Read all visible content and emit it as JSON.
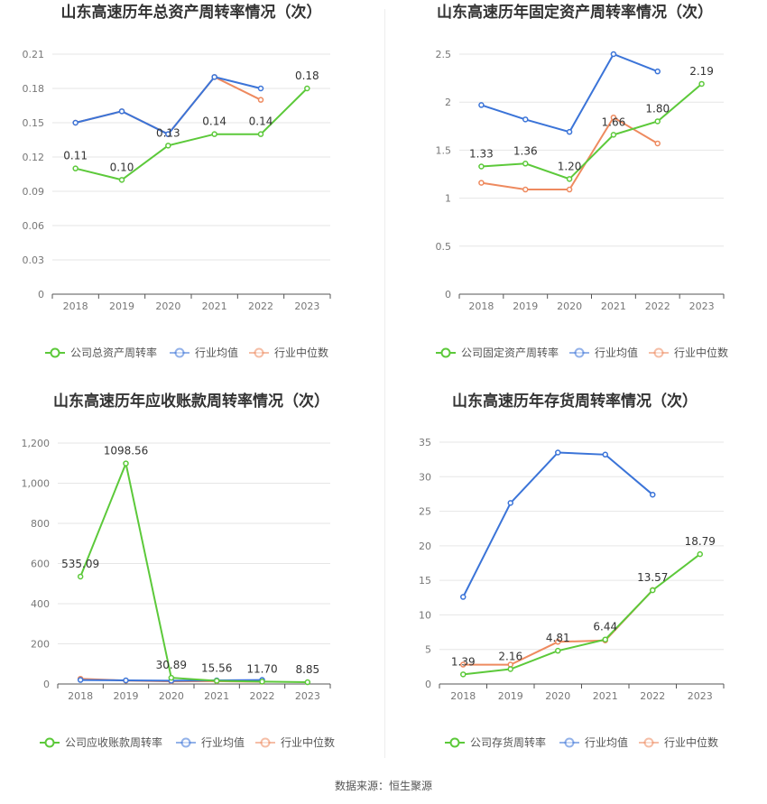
{
  "colors": {
    "company": "#5cc93a",
    "avg": "#3b74d8",
    "median": "#ee8a5f",
    "grid": "#e6e6e6",
    "axis": "#555555"
  },
  "source_text": "数据来源：恒生聚源",
  "chart_data": [
    {
      "type": "line",
      "title": "山东高速历年总资产周转率情况（次）",
      "categories": [
        "2018",
        "2019",
        "2020",
        "2021",
        "2022",
        "2023"
      ],
      "ylim": [
        0,
        0.21
      ],
      "yticks": [
        "0",
        "0.03",
        "0.06",
        "0.09",
        "0.12",
        "0.15",
        "0.18",
        "0.21"
      ],
      "ytick_values": [
        0,
        0.03,
        0.06,
        0.09,
        0.12,
        0.15,
        0.18,
        0.21
      ],
      "series": [
        {
          "name": "公司总资产周转率",
          "color_key": "company",
          "values": [
            0.11,
            0.1,
            0.13,
            0.14,
            0.14,
            0.18
          ],
          "labels": [
            "0.11",
            "0.10",
            "0.13",
            "0.14",
            "0.14",
            "0.18"
          ]
        },
        {
          "name": "行业均值",
          "color_key": "avg",
          "values": [
            0.15,
            0.16,
            0.14,
            0.19,
            0.18,
            null
          ]
        },
        {
          "name": "行业中位数",
          "color_key": "median",
          "values": [
            0.15,
            0.16,
            0.14,
            0.19,
            0.17,
            null
          ]
        }
      ]
    },
    {
      "type": "line",
      "title": "山东高速历年固定资产周转率情况（次）",
      "categories": [
        "2018",
        "2019",
        "2020",
        "2021",
        "2022",
        "2023"
      ],
      "ylim": [
        0,
        2.5
      ],
      "yticks": [
        "0",
        "0.5",
        "1",
        "1.5",
        "2",
        "2.5"
      ],
      "ytick_values": [
        0,
        0.5,
        1,
        1.5,
        2,
        2.5
      ],
      "series": [
        {
          "name": "公司固定资产周转率",
          "color_key": "company",
          "values": [
            1.33,
            1.36,
            1.2,
            1.66,
            1.8,
            2.19
          ],
          "labels": [
            "1.33",
            "1.36",
            "1.20",
            "1.66",
            "1.80",
            "2.19"
          ]
        },
        {
          "name": "行业均值",
          "color_key": "avg",
          "values": [
            1.97,
            1.82,
            1.69,
            2.5,
            2.32,
            null
          ]
        },
        {
          "name": "行业中位数",
          "color_key": "median",
          "values": [
            1.16,
            1.09,
            1.09,
            1.84,
            1.57,
            null
          ]
        }
      ]
    },
    {
      "type": "line",
      "title": "山东高速历年应收账款周转率情况（次）",
      "categories": [
        "2018",
        "2019",
        "2020",
        "2021",
        "2022",
        "2023"
      ],
      "ylim": [
        0,
        1200
      ],
      "yticks": [
        "0",
        "200",
        "400",
        "600",
        "800",
        "1,000",
        "1,200"
      ],
      "ytick_values": [
        0,
        200,
        400,
        600,
        800,
        1000,
        1200
      ],
      "series": [
        {
          "name": "公司应收账款周转率",
          "color_key": "company",
          "values": [
            535.09,
            1098.56,
            30.89,
            15.56,
            11.7,
            8.85
          ],
          "labels": [
            "535.09",
            "1098.56",
            "30.89",
            "15.56",
            "11.70",
            "8.85"
          ]
        },
        {
          "name": "行业均值",
          "color_key": "avg",
          "values": [
            20,
            18,
            16,
            18,
            20,
            null
          ]
        },
        {
          "name": "行业中位数",
          "color_key": "median",
          "values": [
            26,
            17,
            13,
            14,
            11,
            null
          ]
        }
      ]
    },
    {
      "type": "line",
      "title": "山东高速历年存货周转率情况（次）",
      "categories": [
        "2018",
        "2019",
        "2020",
        "2021",
        "2022",
        "2023"
      ],
      "ylim": [
        0,
        35
      ],
      "yticks": [
        "0",
        "5",
        "10",
        "15",
        "20",
        "25",
        "30",
        "35"
      ],
      "ytick_values": [
        0,
        5,
        10,
        15,
        20,
        25,
        30,
        35
      ],
      "series": [
        {
          "name": "公司存货周转率",
          "color_key": "company",
          "values": [
            1.39,
            2.16,
            4.81,
            6.44,
            13.57,
            18.79
          ],
          "labels": [
            "1.39",
            "2.16",
            "4.81",
            "6.44",
            "13.57",
            "18.79"
          ]
        },
        {
          "name": "行业均值",
          "color_key": "avg",
          "values": [
            12.6,
            26.2,
            33.5,
            33.2,
            27.4,
            null
          ]
        },
        {
          "name": "行业中位数",
          "color_key": "median",
          "values": [
            2.8,
            2.8,
            6.1,
            6.3,
            13.6,
            null
          ]
        }
      ]
    }
  ]
}
